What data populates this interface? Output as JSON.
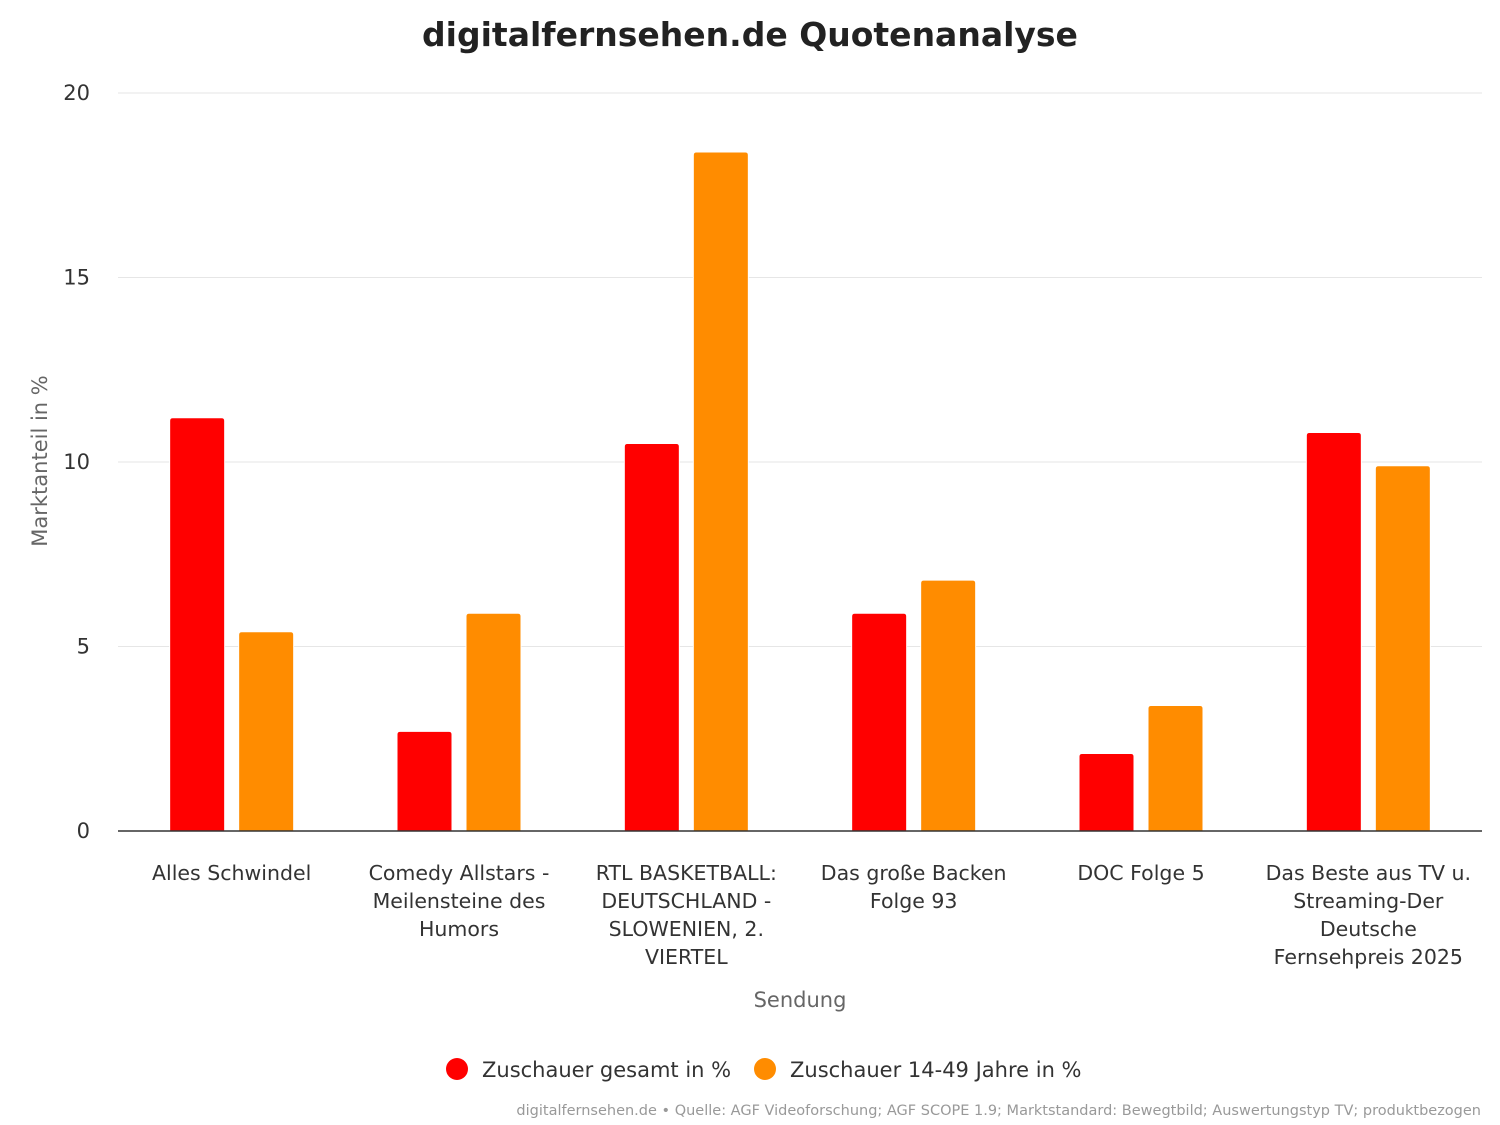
{
  "chart_data": {
    "type": "bar",
    "title": "digitalfernsehen.de Quotenanalyse",
    "xlabel": "Sendung",
    "ylabel": "Marktanteil in %",
    "ylim": [
      0,
      20
    ],
    "yticks": [
      0,
      5,
      10,
      15,
      20
    ],
    "grid": true,
    "legend_position": "bottom-center",
    "categories": [
      [
        "Alles Schwindel"
      ],
      [
        "Comedy Allstars -",
        "Meilensteine des",
        "Humors"
      ],
      [
        "RTL BASKETBALL:",
        "DEUTSCHLAND -",
        "SLOWENIEN, 2.",
        "VIERTEL"
      ],
      [
        "Das große Backen",
        "Folge 93"
      ],
      [
        "DOC Folge 5"
      ],
      [
        "Das Beste aus TV u.",
        "Streaming-Der",
        "Deutsche",
        "Fernsehpreis 2025"
      ]
    ],
    "series": [
      {
        "name": "Zuschauer gesamt in %",
        "color": "#ff0000",
        "values": [
          11.2,
          2.7,
          10.5,
          5.9,
          2.1,
          10.8
        ]
      },
      {
        "name": "Zuschauer 14-49 Jahre in %",
        "color": "#ff8c00",
        "values": [
          5.4,
          5.9,
          18.4,
          6.8,
          3.4,
          9.9
        ]
      }
    ],
    "credits": "digitalfernsehen.de • Quelle: AGF Videoforschung; AGF SCOPE 1.9; Marktstandard: Bewegtbild; Auswertungstyp TV; produktbezogen"
  }
}
